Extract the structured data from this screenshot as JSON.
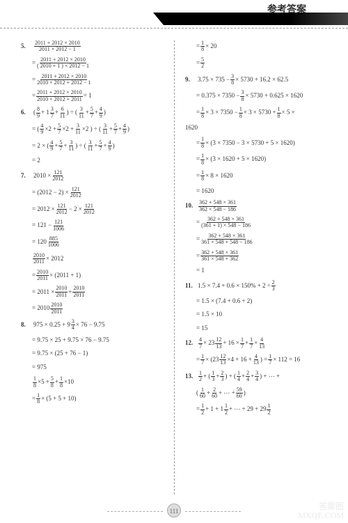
{
  "header": {
    "title": "参考答案"
  },
  "footer": {
    "page": "111",
    "watermark_top": "答案圈",
    "watermark_bottom": "MXQE.COM"
  },
  "leftLines": [
    {
      "type": "start",
      "num": "5.",
      "parts": [
        {
          "f": [
            "2011 + 2012 × 2010",
            "2011 × 2012 − 1"
          ]
        }
      ]
    },
    {
      "type": "ind",
      "parts": [
        {
          "t": "= "
        },
        {
          "f": [
            "2011 + 2012 × 2010",
            "( 2010 + 1 ) × 2012 − 1"
          ]
        }
      ]
    },
    {
      "type": "ind",
      "parts": [
        {
          "t": "= "
        },
        {
          "f": [
            "2011 + 2012 × 2010",
            "2010 × 2012 + 2012 − 1"
          ]
        }
      ]
    },
    {
      "type": "ind",
      "parts": [
        {
          "t": "= "
        },
        {
          "f": [
            "2011 + 2012 × 2010",
            "2010 × 2012 + 2011"
          ]
        },
        {
          "t": " = 1"
        }
      ]
    },
    {
      "type": "start",
      "num": "6.",
      "parts": [
        {
          "t": "( "
        },
        {
          "f": [
            "8",
            "9"
          ]
        },
        {
          "t": " + 1 "
        },
        {
          "f": [
            "3",
            "7"
          ]
        },
        {
          "t": " + "
        },
        {
          "f": [
            "6",
            "11"
          ]
        },
        {
          "t": " ) ÷ ( "
        },
        {
          "f": [
            "3",
            "11"
          ]
        },
        {
          "t": " + "
        },
        {
          "f": [
            "5",
            "7"
          ]
        },
        {
          "t": " + "
        },
        {
          "f": [
            "4",
            "9"
          ]
        },
        {
          "t": " )"
        }
      ]
    },
    {
      "type": "ind",
      "parts": [
        {
          "t": "= ( "
        },
        {
          "f": [
            "4",
            "9"
          ]
        },
        {
          "t": " ×2 + "
        },
        {
          "f": [
            "5",
            "7"
          ]
        },
        {
          "t": " ×2 + "
        },
        {
          "f": [
            "3",
            "11"
          ]
        },
        {
          "t": " ×2 ) ÷ ( "
        },
        {
          "f": [
            "3",
            "11"
          ]
        },
        {
          "t": " + "
        },
        {
          "f": [
            "5",
            "7"
          ]
        },
        {
          "t": " + "
        },
        {
          "f": [
            "4",
            "9"
          ]
        },
        {
          "t": " )"
        }
      ]
    },
    {
      "type": "ind",
      "parts": [
        {
          "t": "= 2 × ( "
        },
        {
          "f": [
            "4",
            "9"
          ]
        },
        {
          "t": " + "
        },
        {
          "f": [
            "5",
            "7"
          ]
        },
        {
          "t": " + "
        },
        {
          "f": [
            "3",
            "11"
          ]
        },
        {
          "t": " ) ÷ ( "
        },
        {
          "f": [
            "3",
            "11"
          ]
        },
        {
          "t": " + "
        },
        {
          "f": [
            "5",
            "7"
          ]
        },
        {
          "t": " + "
        },
        {
          "f": [
            "4",
            "9"
          ]
        },
        {
          "t": " )"
        }
      ]
    },
    {
      "type": "ind",
      "parts": [
        {
          "t": "= 2"
        }
      ]
    },
    {
      "type": "start",
      "num": "7.",
      "parts": [
        {
          "t": "2010 × "
        },
        {
          "f": [
            "121",
            "2012"
          ]
        }
      ]
    },
    {
      "type": "ind",
      "parts": [
        {
          "t": "= (2012 − 2) × "
        },
        {
          "f": [
            "121",
            "2012"
          ]
        }
      ]
    },
    {
      "type": "ind",
      "parts": [
        {
          "t": "= 2012 × "
        },
        {
          "f": [
            "121",
            "2012"
          ]
        },
        {
          "t": " − 2 × "
        },
        {
          "f": [
            "121",
            "2012"
          ]
        }
      ]
    },
    {
      "type": "ind",
      "parts": [
        {
          "t": "= 121 − "
        },
        {
          "f": [
            "121",
            "1006"
          ]
        }
      ]
    },
    {
      "type": "ind",
      "parts": [
        {
          "t": "= 120 "
        },
        {
          "f": [
            "885",
            "1006"
          ]
        }
      ]
    },
    {
      "type": "ind",
      "parts": [
        {
          "f": [
            "2010",
            "2011"
          ]
        },
        {
          "t": " × 2012"
        }
      ]
    },
    {
      "type": "ind",
      "parts": [
        {
          "t": "= "
        },
        {
          "f": [
            "2010",
            "2011"
          ]
        },
        {
          "t": " × (2011 + 1)"
        }
      ]
    },
    {
      "type": "ind",
      "parts": [
        {
          "t": "= 2011 × "
        },
        {
          "f": [
            "2010",
            "2011"
          ]
        },
        {
          "t": " + "
        },
        {
          "f": [
            "2010",
            "2011"
          ]
        }
      ]
    },
    {
      "type": "ind",
      "parts": [
        {
          "t": "= 2010 "
        },
        {
          "f": [
            "2010",
            "2011"
          ]
        }
      ]
    },
    {
      "type": "start",
      "num": "8.",
      "parts": [
        {
          "t": "975 × 0.25 + 9 "
        },
        {
          "f": [
            "3",
            "4"
          ]
        },
        {
          "t": " × 76 − 9.75"
        }
      ]
    },
    {
      "type": "ind",
      "parts": [
        {
          "t": "= 9.75 × 25 + 9.75 × 76 − 9.75"
        }
      ]
    },
    {
      "type": "ind",
      "parts": [
        {
          "t": "= 9.75 × (25 + 76 − 1)"
        }
      ]
    },
    {
      "type": "ind",
      "parts": [
        {
          "t": "= 975"
        }
      ]
    },
    {
      "type": "ind",
      "parts": [
        {
          "f": [
            "1",
            "8"
          ]
        },
        {
          "t": " ×5 + "
        },
        {
          "f": [
            "5",
            "8"
          ]
        },
        {
          "t": " + "
        },
        {
          "f": [
            "1",
            "8"
          ]
        },
        {
          "t": " ×10"
        }
      ]
    },
    {
      "type": "ind",
      "parts": [
        {
          "t": "= "
        },
        {
          "f": [
            "1",
            "8"
          ]
        },
        {
          "t": " × (5 + 5 + 10)"
        }
      ]
    }
  ],
  "rightLines": [
    {
      "type": "ind",
      "parts": [
        {
          "t": "= "
        },
        {
          "f": [
            "1",
            "8"
          ]
        },
        {
          "t": " × 20"
        }
      ]
    },
    {
      "type": "ind",
      "parts": [
        {
          "t": "= "
        },
        {
          "f": [
            "5",
            "2"
          ]
        }
      ]
    },
    {
      "type": "start",
      "num": "9.",
      "parts": [
        {
          "t": "3.75 × 735 − "
        },
        {
          "f": [
            "3",
            "8"
          ]
        },
        {
          "t": " × 5730 + 16.2 × 62.5"
        }
      ]
    },
    {
      "type": "ind",
      "parts": [
        {
          "t": "= 0.375 × 7350 − "
        },
        {
          "f": [
            "3",
            "8"
          ]
        },
        {
          "t": " × 5730 + 0.625 × 1620"
        }
      ]
    },
    {
      "type": "ind",
      "parts": [
        {
          "t": "= "
        },
        {
          "f": [
            "1",
            "8"
          ]
        },
        {
          "t": " × 3 × 7350 − "
        },
        {
          "f": [
            "1",
            "8"
          ]
        },
        {
          "t": " × 3 × 5730 + "
        },
        {
          "f": [
            "1",
            "8"
          ]
        },
        {
          "t": " × 5 ×"
        }
      ]
    },
    {
      "type": "plain",
      "parts": [
        {
          "t": "1620"
        }
      ]
    },
    {
      "type": "ind",
      "parts": [
        {
          "t": "= "
        },
        {
          "f": [
            "1",
            "8"
          ]
        },
        {
          "t": " × (3 × 7350 − 3 × 5730 + 5 × 1620)"
        }
      ]
    },
    {
      "type": "ind",
      "parts": [
        {
          "t": "= "
        },
        {
          "f": [
            "1",
            "8"
          ]
        },
        {
          "t": " × (3 × 1620 + 5 × 1620)"
        }
      ]
    },
    {
      "type": "ind",
      "parts": [
        {
          "t": "= "
        },
        {
          "f": [
            "1",
            "8"
          ]
        },
        {
          "t": " × 8 × 1620"
        }
      ]
    },
    {
      "type": "ind",
      "parts": [
        {
          "t": "= 1620"
        }
      ]
    },
    {
      "type": "start",
      "num": "10.",
      "parts": [
        {
          "f": [
            "362 + 548 × 361",
            "362 × 548 − 186"
          ]
        }
      ]
    },
    {
      "type": "ind",
      "parts": [
        {
          "t": "= "
        },
        {
          "f": [
            "362 + 548 × 361",
            "(361 + 1) × 548 − 186"
          ]
        }
      ]
    },
    {
      "type": "ind",
      "parts": [
        {
          "t": "= "
        },
        {
          "f": [
            "362 + 548 × 361",
            "361 × 548 + 548 − 186"
          ]
        }
      ]
    },
    {
      "type": "ind",
      "parts": [
        {
          "t": "= "
        },
        {
          "f": [
            "362 + 548 × 361",
            "361 × 548 + 362"
          ]
        }
      ]
    },
    {
      "type": "ind",
      "parts": [
        {
          "t": "= 1"
        }
      ]
    },
    {
      "type": "start",
      "num": "11.",
      "parts": [
        {
          "t": "1.5 × 7.4 + 0.6 × 150% + 2 ÷ "
        },
        {
          "f": [
            "2",
            "3"
          ]
        }
      ]
    },
    {
      "type": "ind",
      "parts": [
        {
          "t": "= 1.5 × (7.4 + 0.6 + 2)"
        }
      ]
    },
    {
      "type": "ind",
      "parts": [
        {
          "t": "= 1.5 × 10"
        }
      ]
    },
    {
      "type": "ind",
      "parts": [
        {
          "t": "= 15"
        }
      ]
    },
    {
      "type": "start",
      "num": "12.",
      "parts": [
        {
          "f": [
            "4",
            "7"
          ]
        },
        {
          "t": " × 23 "
        },
        {
          "f": [
            "12",
            "13"
          ]
        },
        {
          "t": " + 16 × "
        },
        {
          "f": [
            "1",
            "7"
          ]
        },
        {
          "t": " + "
        },
        {
          "f": [
            "1",
            "7"
          ]
        },
        {
          "t": " × "
        },
        {
          "f": [
            "4",
            "13"
          ]
        }
      ]
    },
    {
      "type": "ind",
      "parts": [
        {
          "t": "= "
        },
        {
          "f": [
            "1",
            "7"
          ]
        },
        {
          "t": " × (23 "
        },
        {
          "f": [
            "12",
            "13"
          ]
        },
        {
          "t": " ×4 + 16 + "
        },
        {
          "f": [
            "4",
            "13"
          ]
        },
        {
          "t": ") = "
        },
        {
          "f": [
            "1",
            "7"
          ]
        },
        {
          "t": " × 112 = 16"
        }
      ]
    },
    {
      "type": "start",
      "num": "13.",
      "parts": [
        {
          "f": [
            "1",
            "2"
          ]
        },
        {
          "t": " + ( "
        },
        {
          "f": [
            "1",
            "3"
          ]
        },
        {
          "t": " + "
        },
        {
          "f": [
            "2",
            "3"
          ]
        },
        {
          "t": " ) + ( "
        },
        {
          "f": [
            "1",
            "4"
          ]
        },
        {
          "t": " + "
        },
        {
          "f": [
            "2",
            "4"
          ]
        },
        {
          "t": " + "
        },
        {
          "f": [
            "3",
            "4"
          ]
        },
        {
          "t": " ) + ⋯ +"
        }
      ]
    },
    {
      "type": "ind",
      "parts": [
        {
          "t": "( "
        },
        {
          "f": [
            "1",
            "60"
          ]
        },
        {
          "t": " + "
        },
        {
          "f": [
            "2",
            "60"
          ]
        },
        {
          "t": " + ⋯ + "
        },
        {
          "f": [
            "59",
            "60"
          ]
        },
        {
          "t": " )"
        }
      ]
    },
    {
      "type": "ind",
      "parts": [
        {
          "t": "= "
        },
        {
          "f": [
            "1",
            "2"
          ]
        },
        {
          "t": " + 1 + 1 "
        },
        {
          "f": [
            "1",
            "2"
          ]
        },
        {
          "t": " + ⋯ + 29 + 29 "
        },
        {
          "f": [
            "1",
            "2"
          ]
        }
      ]
    }
  ]
}
